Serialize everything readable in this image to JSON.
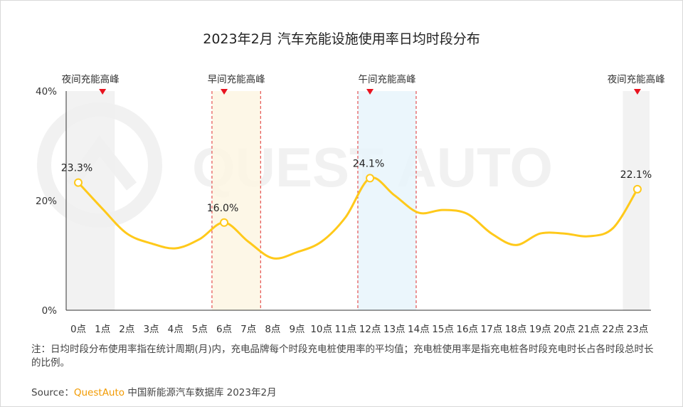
{
  "chart_data": {
    "type": "line",
    "title": "2023年2月 汽车充能设施使用率日均时段分布",
    "watermark": "QUEST AUTO",
    "ylim": [
      0,
      40
    ],
    "yticks": [
      "0%",
      "20%",
      "40%"
    ],
    "categories": [
      "0点",
      "1点",
      "2点",
      "3点",
      "4点",
      "5点",
      "6点",
      "7点",
      "8点",
      "9点",
      "10点",
      "11点",
      "12点",
      "13点",
      "14点",
      "15点",
      "16点",
      "17点",
      "18点",
      "19点",
      "20点",
      "21点",
      "22点",
      "23点"
    ],
    "series": [
      {
        "values": [
          23.3,
          18.5,
          14.0,
          12.2,
          11.3,
          13.0,
          16.0,
          12.5,
          9.5,
          10.6,
          12.5,
          17.0,
          24.1,
          21.0,
          17.8,
          18.3,
          17.6,
          14.0,
          11.9,
          14.0,
          14.0,
          13.5,
          15.0,
          22.1
        ]
      }
    ],
    "data_labels": [
      {
        "index": 0,
        "text": "23.3%"
      },
      {
        "index": 6,
        "text": "16.0%"
      },
      {
        "index": 12,
        "text": "24.1%"
      },
      {
        "index": 23,
        "text": "22.1%"
      }
    ],
    "bands": [
      {
        "label": "夜间充能高峰",
        "from": -0.5,
        "to": 1.5,
        "fill": "#f0f0f0",
        "dashed": false,
        "arrow_at": 1
      },
      {
        "label": "早间充能高峰",
        "from": 5.5,
        "to": 7.5,
        "fill": "#fdf6e3",
        "dashed": true,
        "arrow_at": 6
      },
      {
        "label": "午间充能高峰",
        "from": 11.5,
        "to": 13.9,
        "fill": "#e8f4fb",
        "dashed": true,
        "arrow_at": 12
      },
      {
        "label": "夜间充能高峰",
        "from": 22.4,
        "to": 23.5,
        "fill": "#f0f0f0",
        "dashed": false,
        "arrow_at": 23
      }
    ],
    "colors": {
      "line": "#ffc91a",
      "band_dash": "#e03030",
      "arrow": "#e8131f",
      "axis": "#333333"
    }
  },
  "footnote": "注：日均时段分布使用率指在统计周期(月)内，充电品牌每个时段充电桩使用率的平均值；充电桩使用率是指充电桩各时段充电时长占各时段总时长的比例。",
  "source": {
    "prefix": "Source：",
    "brand": "QuestAuto",
    "text": " 中国新能源汽车数据库 2023年2月"
  }
}
